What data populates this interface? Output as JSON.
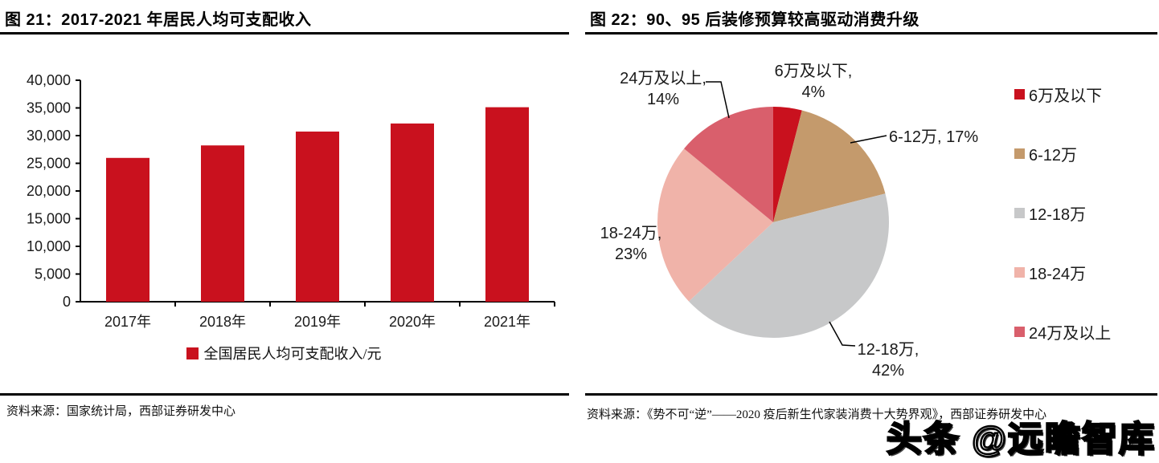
{
  "watermark": {
    "text": "头条 @远瞻智库"
  },
  "figures": [
    {
      "id": "figure-21",
      "title": "图 21：2017-2021 年居民人均可支配收入",
      "source": "资料来源：国家统计局，西部证券研发中心",
      "legend_label": "全国居民人均可支配收入/元"
    },
    {
      "id": "figure-22",
      "title": "图 22：90、95 后装修预算较高驱动消费升级",
      "source": "资料来源：《势不可“逆”——2020 疫后新生代家装消费十大势界观》，西部证券研发中心",
      "legend_labels": [
        "6万及以下",
        "6-12万",
        "12-18万",
        "18-24万",
        "24万及以上"
      ]
    }
  ],
  "chart_data": [
    {
      "type": "bar",
      "title": "图 21：2017-2021 年居民人均可支配收入",
      "categories": [
        "2017年",
        "2018年",
        "2019年",
        "2020年",
        "2021年"
      ],
      "series": [
        {
          "name": "全国居民人均可支配收入/元",
          "values": [
            25974,
            28228,
            30733,
            32189,
            35128
          ]
        }
      ],
      "xlabel": "",
      "ylabel": "",
      "ylim": [
        0,
        40000
      ],
      "ytick_interval": 5000,
      "ytick_labels": [
        "0",
        "5,000",
        "10,000",
        "15,000",
        "20,000",
        "25,000",
        "30,000",
        "35,000",
        "40,000"
      ],
      "grid": false,
      "bar_color": "#c9111e",
      "legend_position": "bottom"
    },
    {
      "type": "pie",
      "title": "图 22：90、95 后装修预算较高驱动消费升级",
      "labels": [
        "6万及以下",
        "6-12万",
        "12-18万",
        "18-24万",
        "24万及以上"
      ],
      "values": [
        4,
        17,
        42,
        23,
        14
      ],
      "unit": "percent",
      "colors": [
        "#c9111e",
        "#c49a6c",
        "#c7c8c9",
        "#f0b3a9",
        "#d95f6c"
      ],
      "start_angle": "top",
      "direction": "clockwise",
      "legend_position": "right",
      "callouts": [
        {
          "lines": [
            "6万及以下,",
            "4%"
          ]
        },
        {
          "lines": [
            "6-12万, 17%"
          ]
        },
        {
          "lines": [
            "12-18万,",
            "42%"
          ]
        },
        {
          "lines": [
            "18-24万,",
            "23%"
          ]
        },
        {
          "lines": [
            "24万及以上,",
            "14%"
          ]
        }
      ]
    }
  ]
}
